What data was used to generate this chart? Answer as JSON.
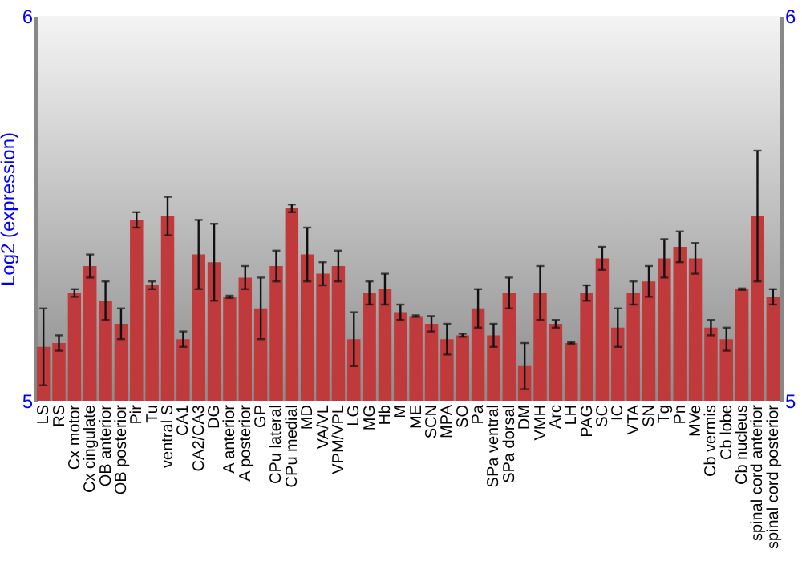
{
  "chart_data": {
    "type": "bar",
    "ylabel": "Log2 (expression)",
    "categories": [
      "LS",
      "RS",
      "Cx motor",
      "Cx cingulate",
      "OB anterior",
      "OB posterior",
      "Pir",
      "Tu",
      "ventral S",
      "CA1",
      "CA2/CA3",
      "DG",
      "A anterior",
      "A posterior",
      "GP",
      "CPu lateral",
      "CPu medial",
      "MD",
      "VA/VL",
      "VPM/VPL",
      "LG",
      "MG",
      "Hb",
      "M",
      "ME",
      "SCN",
      "MPA",
      "SO",
      "Pa",
      "SPa ventral",
      "SPa dorsal",
      "DM",
      "VMH",
      "Arc",
      "LH",
      "PAG",
      "SC",
      "IC",
      "VTA",
      "SN",
      "Tg",
      "Pn",
      "MVe",
      "Cb vermis",
      "Cb lobe",
      "Cb nucleus",
      "spinal cord anterior",
      "spinal cord posterior"
    ],
    "series": [
      {
        "color": "#c0393b",
        "values": [
          5.14,
          5.15,
          5.28,
          5.35,
          5.26,
          5.2,
          5.47,
          5.3,
          5.48,
          5.16,
          5.38,
          5.36,
          5.27,
          5.32,
          5.24,
          5.35,
          5.5,
          5.38,
          5.33,
          5.35,
          5.16,
          5.28,
          5.29,
          5.23,
          5.22,
          5.2,
          5.16,
          5.17,
          5.24,
          5.17,
          5.28,
          5.09,
          5.28,
          5.2,
          5.15,
          5.28,
          5.37,
          5.19,
          5.28,
          5.31,
          5.37,
          5.4,
          5.37,
          5.19,
          5.16,
          5.29,
          5.48,
          5.27
        ],
        "errors": [
          0.1,
          0.02,
          0.01,
          0.03,
          0.05,
          0.04,
          0.02,
          0.01,
          0.05,
          0.02,
          0.09,
          0.1,
          0.003,
          0.03,
          0.08,
          0.04,
          0.01,
          0.07,
          0.03,
          0.04,
          0.07,
          0.03,
          0.04,
          0.02,
          0.002,
          0.02,
          0.04,
          0.004,
          0.05,
          0.03,
          0.04,
          0.06,
          0.07,
          0.01,
          0.002,
          0.02,
          0.03,
          0.05,
          0.03,
          0.04,
          0.05,
          0.04,
          0.04,
          0.02,
          0.03,
          0.002,
          0.17,
          0.02
        ]
      }
    ],
    "ylim": [
      5,
      6
    ],
    "yticks": [
      5,
      6
    ],
    "y2lim": [
      5,
      6
    ],
    "y2ticks": [
      5,
      6
    ],
    "grid": false
  }
}
